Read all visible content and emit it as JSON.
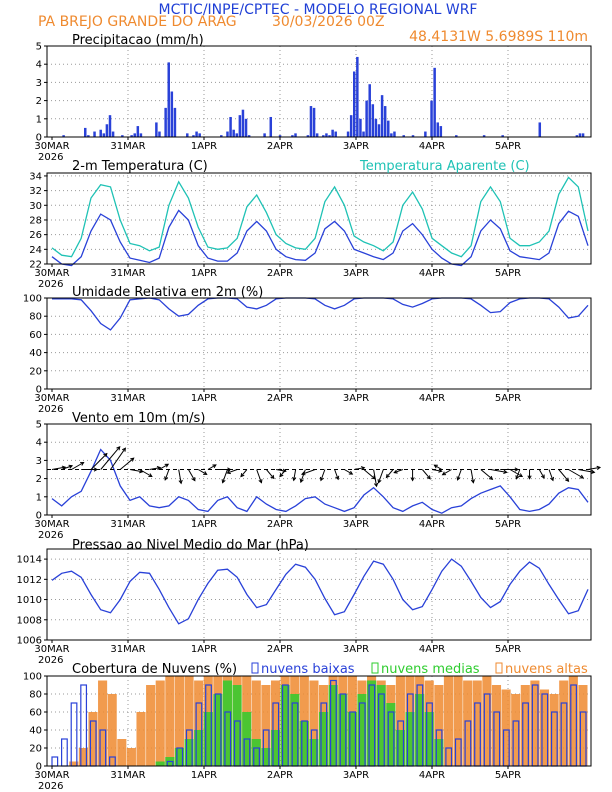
{
  "header": {
    "title": "MCTIC/INPE/CPTEC - MODELO REGIONAL WRF",
    "location": "PA BREJO GRANDE DO ARAG",
    "run": "30/03/2026 00Z",
    "coords": "48.4131W 5.6989S 110m"
  },
  "colors": {
    "title": "#1f3fd6",
    "orange": "#ef8a2f",
    "blue": "#2941d8",
    "teal": "#1fc2b5",
    "green": "#2ecc2e",
    "grid": "#9a9a9a"
  },
  "time_axis": {
    "labels": [
      "30MAR",
      "31MAR",
      "1APR",
      "2APR",
      "3APR",
      "4APR",
      "5APR"
    ],
    "year": "2026",
    "hours_step": 3,
    "n_steps": 56
  },
  "chart_data": [
    {
      "type": "bar",
      "title": "Precipitacao (mm/h)",
      "ylim": [
        0,
        5
      ],
      "yticks": [
        0,
        1,
        2,
        3,
        4,
        5
      ],
      "series": [
        {
          "name": "precipitacao",
          "values": [
            0,
            0,
            0,
            0,
            0.1,
            0,
            0,
            0,
            0,
            0,
            0,
            0.5,
            0.1,
            0,
            0.3,
            0,
            0.4,
            0.2,
            0.7,
            1.2,
            0.3,
            0,
            0,
            0.1,
            0,
            0,
            0.1,
            0.2,
            0.6,
            0.2,
            0,
            0,
            0,
            0,
            0.8,
            0.3,
            0,
            1.6,
            4.1,
            2.5,
            1.6,
            0,
            0,
            0,
            0.2,
            0,
            0.1,
            0.3,
            0.2,
            0,
            0,
            0,
            0,
            0,
            0,
            0.1,
            0,
            0.3,
            1.1,
            0.4,
            0.2,
            1.2,
            1.5,
            1.0,
            0.1,
            0,
            0,
            0,
            0,
            0.2,
            0,
            1.1,
            0,
            0,
            0.1,
            0,
            0,
            0,
            0.1,
            0.2,
            0,
            0,
            0,
            0.1,
            1.7,
            1.6,
            0.2,
            0,
            0.1,
            0.2,
            0.1,
            0.4,
            0.3,
            0,
            0,
            0,
            0.3,
            1.2,
            3.6,
            4.4,
            1.0,
            0.3,
            2.0,
            2.9,
            1.8,
            1.0,
            0.7,
            2.3,
            1.7,
            0.9,
            0.2,
            0.3,
            0,
            0,
            0.1,
            0,
            0,
            0.1,
            0,
            0,
            0,
            0.3,
            0,
            2.0,
            3.8,
            0.8,
            0.6,
            0,
            0,
            0,
            0,
            0.1,
            0,
            0,
            0,
            0,
            0,
            0,
            0,
            0,
            0.1,
            0,
            0,
            0,
            0,
            0,
            0.1,
            0,
            0,
            0,
            0,
            0,
            0,
            0,
            0,
            0,
            0,
            0,
            0.8,
            0,
            0,
            0,
            0,
            0,
            0,
            0,
            0,
            0,
            0,
            0,
            0.1,
            0.2,
            0.2,
            0
          ]
        }
      ]
    },
    {
      "type": "line",
      "title": "2-m Temperatura (C)",
      "legend": "Temperatura Aparente (C)",
      "ylim": [
        22,
        34.4
      ],
      "yticks": [
        22,
        24,
        26,
        28,
        30,
        32,
        34
      ],
      "series": [
        {
          "name": "Temperatura Aparente",
          "values": [
            24.2,
            23.2,
            23.0,
            25.5,
            31.0,
            32.8,
            32.5,
            28.0,
            24.8,
            24.5,
            23.8,
            24.3,
            30.0,
            33.2,
            31.0,
            27.0,
            24.3,
            24.0,
            24.2,
            25.5,
            29.8,
            31.4,
            29.0,
            26.0,
            24.8,
            24.2,
            24.0,
            25.5,
            30.5,
            32.5,
            30.0,
            25.8,
            25.0,
            24.5,
            23.8,
            25.0,
            30.0,
            31.8,
            29.5,
            25.5,
            24.5,
            23.5,
            23.0,
            24.5,
            30.5,
            32.5,
            30.5,
            25.5,
            24.5,
            24.5,
            25.0,
            26.5,
            31.5,
            33.8,
            32.5,
            26.5
          ]
        },
        {
          "name": "Temperatura",
          "values": [
            23.0,
            22.0,
            21.8,
            23.0,
            26.5,
            28.8,
            28.0,
            25.0,
            22.8,
            22.5,
            22.2,
            22.8,
            27.0,
            29.3,
            28.0,
            24.5,
            22.8,
            22.4,
            22.4,
            23.5,
            26.5,
            27.8,
            26.5,
            24.0,
            23.0,
            22.6,
            22.5,
            23.5,
            26.8,
            27.8,
            26.5,
            24.0,
            23.5,
            23.0,
            22.6,
            23.5,
            26.5,
            27.5,
            26.0,
            24.0,
            22.8,
            22.0,
            21.8,
            23.0,
            26.5,
            28.0,
            26.8,
            23.8,
            23.0,
            22.8,
            22.6,
            23.5,
            27.5,
            29.2,
            28.5,
            24.5
          ]
        }
      ]
    },
    {
      "type": "line",
      "title": "Umidade Relativa em 2m (%)",
      "ylim": [
        0,
        100
      ],
      "yticks": [
        0,
        20,
        40,
        60,
        80,
        100
      ],
      "series": [
        {
          "name": "Umidade Relativa",
          "values": [
            99,
            99,
            99,
            98,
            86,
            72,
            65,
            78,
            98,
            99,
            100,
            98,
            88,
            80,
            82,
            92,
            99,
            100,
            100,
            99,
            90,
            88,
            92,
            99,
            100,
            100,
            100,
            99,
            92,
            88,
            92,
            99,
            100,
            100,
            100,
            99,
            93,
            90,
            94,
            99,
            100,
            100,
            100,
            99,
            92,
            84,
            85,
            95,
            99,
            100,
            100,
            99,
            90,
            78,
            80,
            92
          ]
        }
      ]
    },
    {
      "type": "line",
      "title": "Vento em 10m (m/s)",
      "ylim": [
        0,
        5
      ],
      "yticks": [
        0,
        1,
        2,
        3,
        4,
        5
      ],
      "series": [
        {
          "name": "Vento",
          "values": [
            0.9,
            0.5,
            1.0,
            1.3,
            2.4,
            3.6,
            3.0,
            1.6,
            0.8,
            1.0,
            0.5,
            0.4,
            0.5,
            1.0,
            0.8,
            0.3,
            0.2,
            0.8,
            1.0,
            0.4,
            0.2,
            1.0,
            0.6,
            0.3,
            0.2,
            0.5,
            0.9,
            1.0,
            0.6,
            0.4,
            0.2,
            0.4,
            1.1,
            1.5,
            1.0,
            0.4,
            0.2,
            0.5,
            0.7,
            0.3,
            0.1,
            0.4,
            0.5,
            0.9,
            1.2,
            1.4,
            1.6,
            1.0,
            0.3,
            0.2,
            0.3,
            0.6,
            1.2,
            1.5,
            1.4,
            0.7
          ]
        }
      ],
      "wind_dir_deg": [
        80,
        70,
        60,
        90,
        45,
        40,
        35,
        50,
        100,
        120,
        80,
        60,
        200,
        170,
        150,
        120,
        60,
        90,
        200,
        250,
        220,
        160,
        140,
        100,
        220,
        190,
        200,
        250,
        200,
        160,
        120,
        80,
        130,
        170,
        200,
        220,
        250,
        180,
        140,
        100,
        300,
        240,
        200,
        170,
        130,
        100,
        90,
        120,
        200,
        180,
        150,
        160,
        140,
        120,
        100,
        80
      ]
    },
    {
      "type": "line",
      "title": "Pressao ao Nivel Medio do Mar (hPa)",
      "ylim": [
        1006,
        1015
      ],
      "yticks": [
        1006,
        1008,
        1010,
        1012,
        1014
      ],
      "series": [
        {
          "name": "Pressao",
          "values": [
            1011.9,
            1012.6,
            1012.8,
            1012.2,
            1010.5,
            1009.0,
            1008.7,
            1010.0,
            1011.8,
            1012.7,
            1012.6,
            1011.0,
            1009.2,
            1007.6,
            1008.1,
            1010.0,
            1011.6,
            1012.9,
            1013.0,
            1012.2,
            1010.5,
            1009.2,
            1009.5,
            1011.0,
            1012.5,
            1013.5,
            1013.2,
            1012.0,
            1010.1,
            1008.5,
            1008.8,
            1010.5,
            1012.3,
            1013.8,
            1013.5,
            1012.0,
            1010.0,
            1009.0,
            1009.3,
            1011.0,
            1012.8,
            1014.0,
            1013.3,
            1011.8,
            1010.2,
            1009.2,
            1009.8,
            1011.5,
            1012.8,
            1013.7,
            1013.1,
            1011.5,
            1010.0,
            1008.6,
            1008.9,
            1011.0
          ]
        }
      ]
    },
    {
      "type": "bar",
      "title": "Cobertura de Nuvens (%)",
      "ylim": [
        0,
        100
      ],
      "yticks": [
        0,
        20,
        40,
        60,
        80,
        100
      ],
      "legend": [
        "nuvens baixas",
        "nuvens medias",
        "nuvens altas"
      ],
      "series": [
        {
          "name": "nuvens altas",
          "values": [
            0,
            0,
            5,
            20,
            60,
            95,
            80,
            30,
            20,
            60,
            90,
            95,
            100,
            100,
            100,
            95,
            100,
            100,
            100,
            100,
            100,
            95,
            90,
            95,
            100,
            100,
            100,
            95,
            90,
            100,
            100,
            100,
            95,
            100,
            95,
            90,
            100,
            100,
            100,
            95,
            90,
            100,
            100,
            95,
            95,
            100,
            90,
            85,
            80,
            90,
            95,
            85,
            80,
            95,
            100,
            90
          ]
        },
        {
          "name": "nuvens medias",
          "values": [
            0,
            0,
            0,
            0,
            0,
            0,
            0,
            0,
            0,
            0,
            0,
            5,
            10,
            20,
            30,
            40,
            60,
            80,
            95,
            90,
            60,
            30,
            20,
            40,
            90,
            80,
            50,
            30,
            60,
            90,
            80,
            60,
            80,
            95,
            90,
            70,
            40,
            60,
            80,
            60,
            30,
            0,
            0,
            0,
            0,
            0,
            0,
            0,
            0,
            0,
            0,
            0,
            0,
            0,
            0,
            0
          ]
        },
        {
          "name": "nuvens baixas",
          "values": [
            10,
            30,
            70,
            90,
            50,
            40,
            10,
            0,
            0,
            0,
            0,
            0,
            5,
            20,
            40,
            70,
            90,
            80,
            60,
            50,
            30,
            20,
            40,
            70,
            90,
            70,
            50,
            40,
            70,
            95,
            80,
            60,
            70,
            90,
            80,
            60,
            50,
            80,
            90,
            70,
            40,
            20,
            30,
            50,
            70,
            80,
            60,
            40,
            50,
            70,
            90,
            80,
            60,
            70,
            90,
            60
          ]
        }
      ]
    }
  ]
}
